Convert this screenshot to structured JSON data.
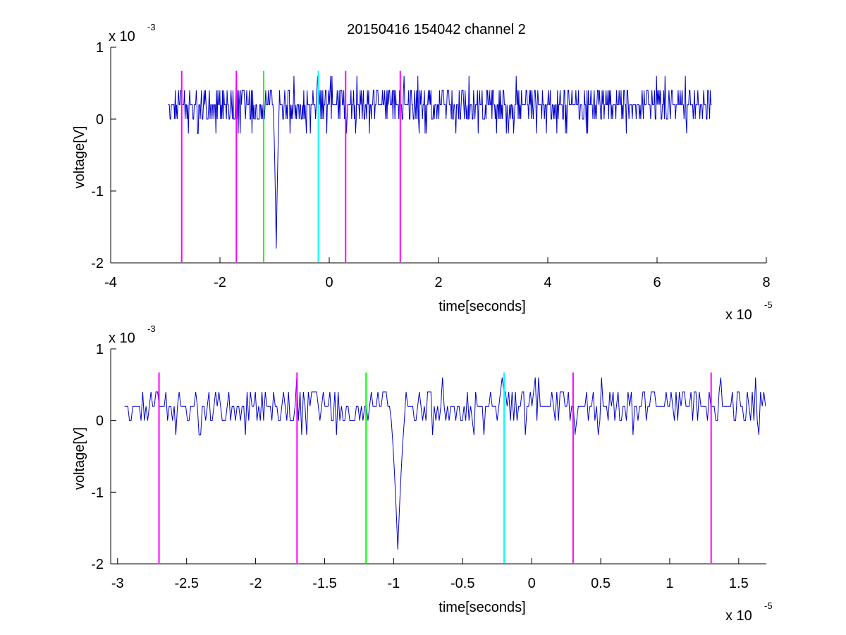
{
  "figure": {
    "title": "20150416 154042 channel 2"
  },
  "chart_data": [
    {
      "type": "line",
      "title": "20150416 154042 channel 2",
      "xlabel": "time[seconds]",
      "ylabel": "voltage[V]",
      "x_exponent_label": "x 10",
      "x_exponent": "-5",
      "y_exponent_label": "x 10",
      "y_exponent": "-3",
      "xlim": [
        -4,
        8
      ],
      "ylim": [
        -2,
        1
      ],
      "xticks": [
        -4,
        -2,
        0,
        2,
        4,
        6,
        8
      ],
      "xtick_labels": [
        "-4",
        "-2",
        "0",
        "2",
        "4",
        "6",
        "8"
      ],
      "yticks": [
        -2,
        -1,
        0,
        1
      ],
      "ytick_labels": [
        "-2",
        "-1",
        "0",
        "1"
      ],
      "grid": false,
      "signal": {
        "color": "#0000cc",
        "x_start": -2.95,
        "x_end": 7.0,
        "spike_x": -0.97,
        "spike_min": -1.8,
        "noise_levels": [
          0.2,
          0.4,
          0.0,
          0.2,
          -0.2,
          0.6
        ]
      },
      "markers": [
        {
          "x": -2.7,
          "color": "#ff00ff"
        },
        {
          "x": -1.7,
          "color": "#ff00ff"
        },
        {
          "x": -1.2,
          "color": "#00ff00"
        },
        {
          "x": -0.2,
          "color": "#00ffff"
        },
        {
          "x": 0.3,
          "color": "#ff00ff"
        },
        {
          "x": 1.3,
          "color": "#ff00ff"
        }
      ]
    },
    {
      "type": "line",
      "title": "",
      "xlabel": "time[seconds]",
      "ylabel": "voltage[V]",
      "x_exponent_label": "x 10",
      "x_exponent": "-5",
      "y_exponent_label": "x 10",
      "y_exponent": "-3",
      "xlim": [
        -3.05,
        1.7
      ],
      "ylim": [
        -2,
        1
      ],
      "xticks": [
        -3,
        -2.5,
        -2,
        -1.5,
        -1,
        -0.5,
        0,
        0.5,
        1,
        1.5
      ],
      "xtick_labels": [
        "-3",
        "-2.5",
        "-2",
        "-1.5",
        "-1",
        "-0.5",
        "0",
        "0.5",
        "1",
        "1.5"
      ],
      "yticks": [
        -2,
        -1,
        0,
        1
      ],
      "ytick_labels": [
        "-2",
        "-1",
        "0",
        "1"
      ],
      "grid": false,
      "signal": {
        "color": "#0000cc",
        "x_start": -2.95,
        "x_end": 1.7,
        "spike_x": -0.97,
        "spike_min": -1.8,
        "noise_levels": [
          0.2,
          0.4,
          0.0,
          0.2,
          -0.2,
          0.6
        ]
      },
      "markers": [
        {
          "x": -2.7,
          "color": "#ff00ff"
        },
        {
          "x": -1.7,
          "color": "#ff00ff"
        },
        {
          "x": -1.2,
          "color": "#00ff00"
        },
        {
          "x": -0.2,
          "color": "#00ffff"
        },
        {
          "x": 0.3,
          "color": "#ff00ff"
        },
        {
          "x": 1.3,
          "color": "#ff00ff"
        }
      ]
    }
  ]
}
